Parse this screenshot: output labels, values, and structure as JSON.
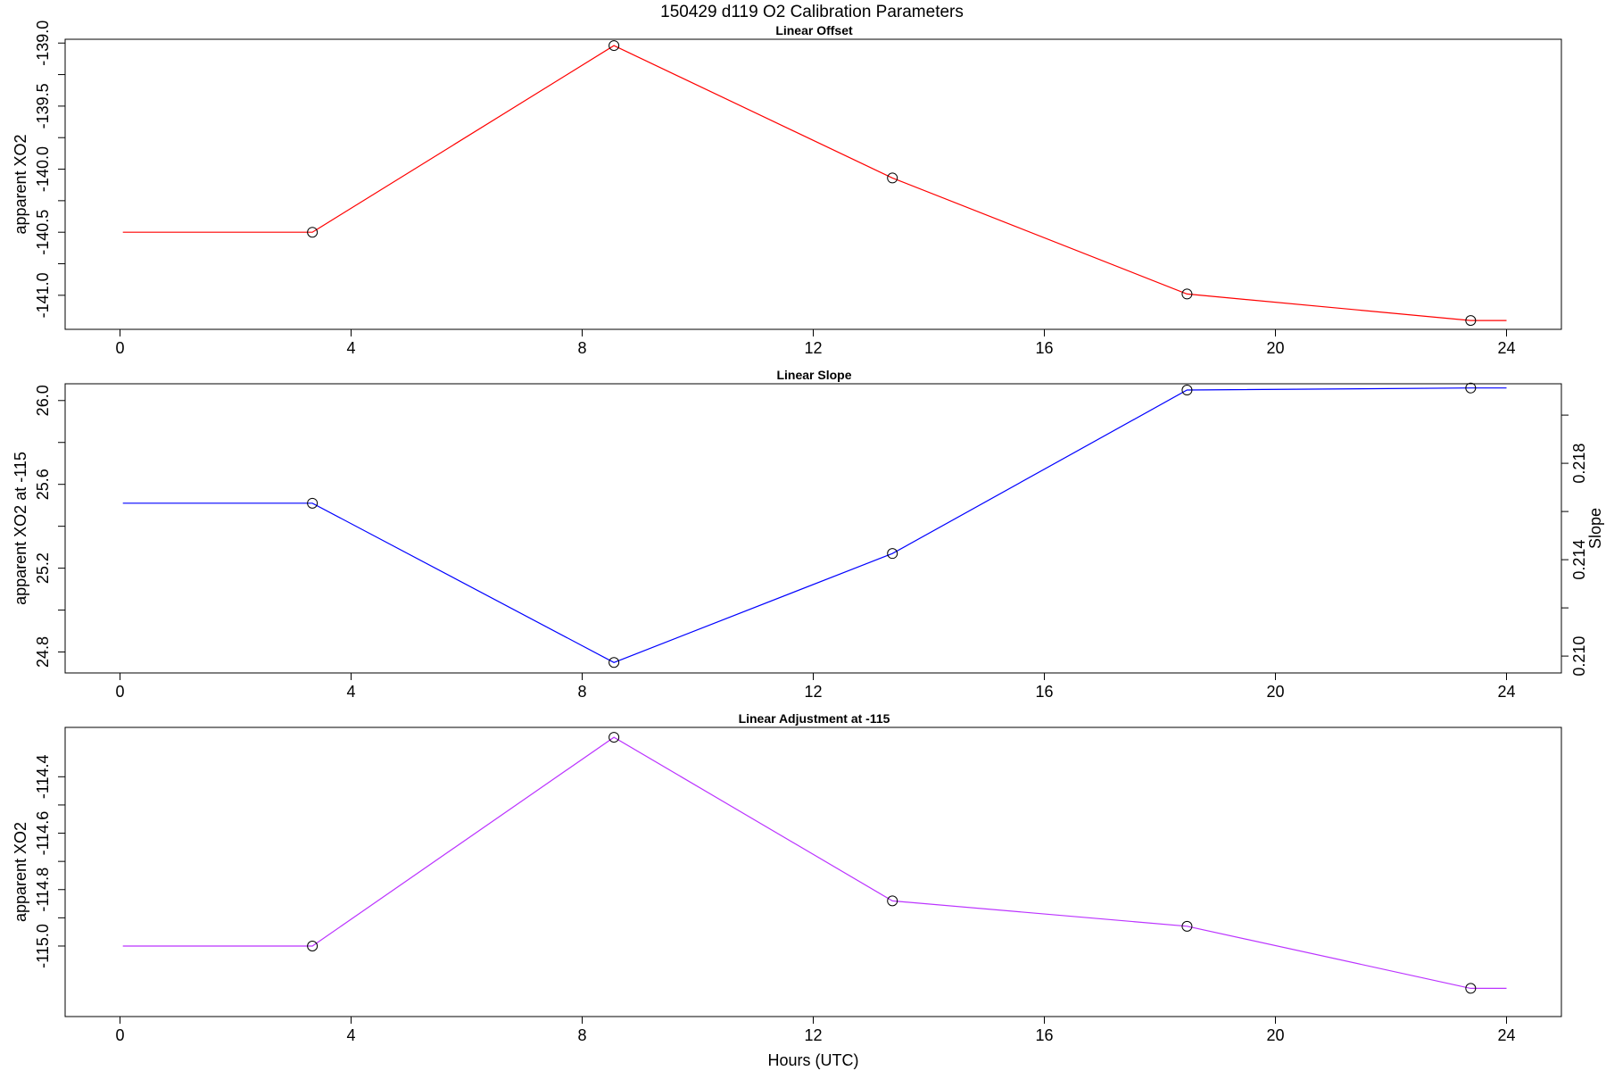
{
  "figure": {
    "title": "150429   d119   O2 Calibration Parameters"
  },
  "chart_data": [
    {
      "type": "line",
      "title": "Linear Offset",
      "xlabel": "",
      "ylabel": "apparent XO2",
      "x_ticks": [
        "0",
        "4",
        "8",
        "12",
        "16",
        "20",
        "24"
      ],
      "y_ticks": [
        "-141.0",
        "-140.5",
        "-140.0",
        "-139.5",
        "-139.0"
      ],
      "xlim": [
        -0.95,
        24.95
      ],
      "ylim": [
        -141.27,
        -138.97
      ],
      "color": "#ff0000",
      "marker": "open-circle",
      "series": [
        {
          "x": [
            0.05,
            3.33,
            8.55,
            13.37,
            18.47,
            23.38,
            24.0
          ],
          "y": [
            -140.5,
            -140.5,
            -139.02,
            -140.07,
            -140.99,
            -141.2,
            -141.2
          ],
          "marker_indices": [
            1,
            2,
            3,
            4,
            5
          ]
        }
      ]
    },
    {
      "type": "line",
      "title": "Linear Slope",
      "xlabel": "",
      "ylabel": "apparent XO2 at -115",
      "y2label": "Slope",
      "x_ticks": [
        "0",
        "4",
        "8",
        "12",
        "16",
        "20",
        "24"
      ],
      "y_ticks": [
        "24.8",
        "25.2",
        "25.6",
        "26.0"
      ],
      "y2_ticks": [
        "0.210",
        "0.214",
        "0.218"
      ],
      "xlim": [
        -0.95,
        24.95
      ],
      "ylim": [
        24.7,
        26.08
      ],
      "y2lim": [
        0.2093,
        0.2213
      ],
      "color": "#0000ff",
      "marker": "open-circle",
      "series": [
        {
          "x": [
            0.05,
            3.33,
            8.55,
            13.37,
            18.47,
            23.38,
            24.0
          ],
          "y": [
            25.51,
            25.51,
            24.75,
            25.27,
            26.05,
            26.06,
            26.06
          ],
          "marker_indices": [
            1,
            2,
            3,
            4,
            5
          ]
        }
      ]
    },
    {
      "type": "line",
      "title": "Linear Adjustment at -115",
      "xlabel": "Hours (UTC)",
      "ylabel": "apparent XO2",
      "x_ticks": [
        "0",
        "4",
        "8",
        "12",
        "16",
        "20",
        "24"
      ],
      "y_ticks": [
        "-115.0",
        "-114.8",
        "-114.6",
        "-114.4"
      ],
      "xlim": [
        -0.95,
        24.95
      ],
      "ylim": [
        -115.25,
        -114.225
      ],
      "color": "#bb33ff",
      "marker": "open-circle",
      "series": [
        {
          "x": [
            0.05,
            3.33,
            8.55,
            13.37,
            18.47,
            23.38,
            24.0
          ],
          "y": [
            -115.0,
            -115.0,
            -114.26,
            -114.84,
            -114.93,
            -115.15,
            -115.15
          ],
          "marker_indices": [
            1,
            2,
            3,
            4,
            5
          ]
        }
      ]
    }
  ]
}
